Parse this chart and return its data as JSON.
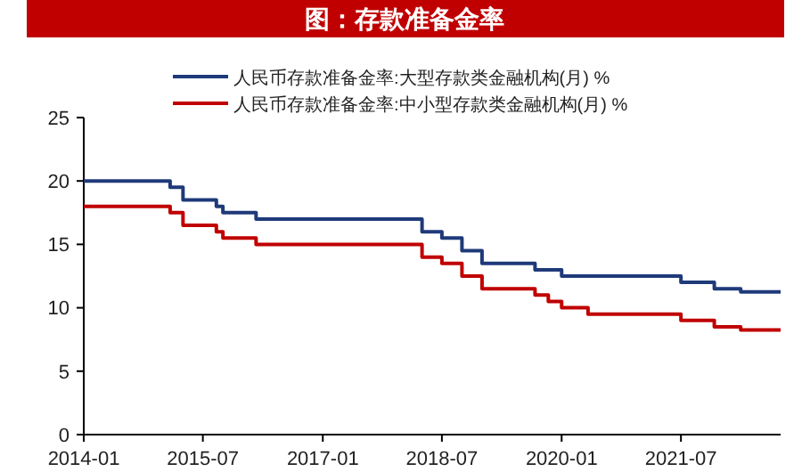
{
  "chart_data": {
    "type": "step",
    "title": "图：存款准备金率",
    "xlim": [
      "2014-01",
      "2022-10"
    ],
    "xticks": [
      "2014-01",
      "2015-07",
      "2017-01",
      "2018-07",
      "2020-01",
      "2021-07"
    ],
    "ylim": [
      0,
      25
    ],
    "yticks": [
      0,
      5,
      10,
      15,
      20,
      25
    ],
    "grid": false,
    "legend": "top",
    "line_style": "solid",
    "marker": "none",
    "series": [
      {
        "name": "人民币存款准备金率:大型存款类金融机构(月) %",
        "color": "#1f3a7a",
        "x": [
          "2014-01",
          "2015-02",
          "2015-04",
          "2015-09",
          "2015-10",
          "2016-03",
          "2018-04",
          "2018-07",
          "2018-10",
          "2019-01",
          "2019-09",
          "2020-01",
          "2021-07",
          "2021-12",
          "2022-04",
          "2022-10"
        ],
        "values": [
          20,
          19.5,
          18.5,
          18,
          17.5,
          17,
          16,
          15.5,
          14.5,
          13.5,
          13,
          12.5,
          12,
          11.5,
          11.25,
          11.25
        ]
      },
      {
        "name": "人民币存款准备金率:中小型存款类金融机构(月) %",
        "color": "#c00000",
        "x": [
          "2014-01",
          "2015-02",
          "2015-04",
          "2015-09",
          "2015-10",
          "2016-03",
          "2018-04",
          "2018-07",
          "2018-10",
          "2019-01",
          "2019-09",
          "2019-11",
          "2020-01",
          "2020-05",
          "2021-07",
          "2021-12",
          "2022-04",
          "2022-10"
        ],
        "values": [
          18,
          17.5,
          16.5,
          16,
          15.5,
          15,
          14,
          13.5,
          12.5,
          11.5,
          11,
          10.5,
          10,
          9.5,
          9,
          8.5,
          8.25,
          8.25
        ]
      }
    ]
  }
}
